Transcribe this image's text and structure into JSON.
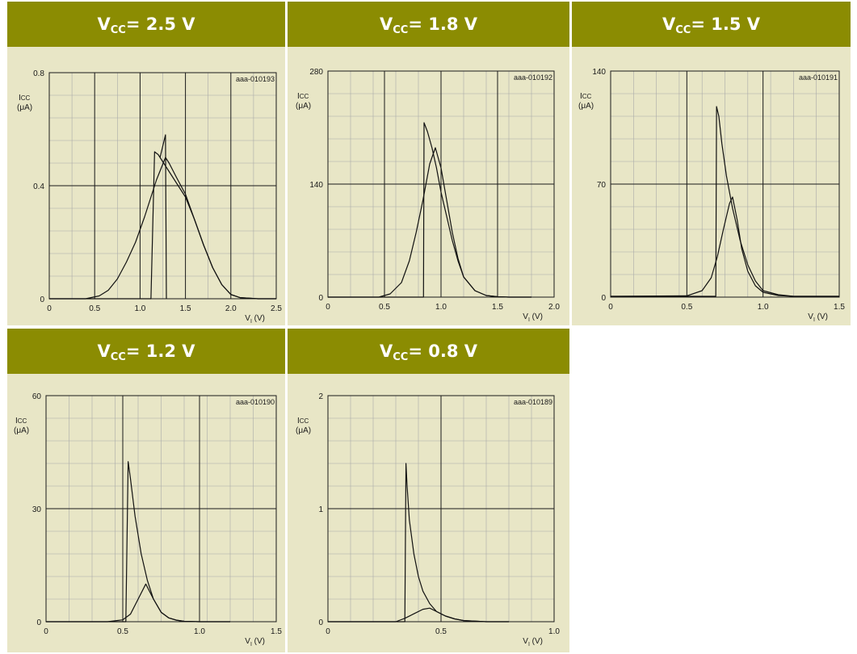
{
  "colors": {
    "header_bg": "#8b8c02",
    "panel_bg": "#e8e6c6",
    "grid_minor": "#a9a9a9",
    "grid_major": "#1a1a1a",
    "curve": "#111111"
  },
  "chart_data": [
    {
      "type": "line",
      "title_var": "V",
      "title_sub": "CC",
      "title_rest": " = 2.5 V",
      "figure_id": "aaa-010193",
      "ylabel_var": "I",
      "ylabel_sub": "CC",
      "ylabel_unit": "(μA)",
      "xlabel_var": "V",
      "xlabel_sub": "I",
      "xlabel_unit": " (V)",
      "xlim": [
        0,
        2.5
      ],
      "ylim": [
        0,
        0.8
      ],
      "xticks": [
        0,
        0.5,
        1.0,
        1.5,
        2.0,
        2.5
      ],
      "xtick_labels": [
        "0",
        "0.5",
        "1.0",
        "1.5",
        "2.0",
        "2.5"
      ],
      "yticks": [
        0,
        0.4,
        0.8
      ],
      "ytick_labels": [
        "0",
        "0.4",
        "0.8"
      ],
      "series": [
        {
          "x": [
            0,
            0.4,
            0.55,
            0.65,
            0.75,
            0.85,
            0.95,
            1.05,
            1.12,
            1.18,
            1.23,
            1.28,
            1.32,
            1.4,
            1.5,
            1.6,
            1.7,
            1.8,
            1.9,
            2.0,
            2.1,
            2.3,
            2.5
          ],
          "y": [
            0,
            0,
            0.01,
            0.03,
            0.07,
            0.13,
            0.2,
            0.29,
            0.36,
            0.42,
            0.46,
            0.5,
            0.48,
            0.43,
            0.37,
            0.28,
            0.19,
            0.11,
            0.05,
            0.015,
            0.004,
            0,
            0
          ]
        },
        {
          "x": [
            0,
            1.12,
            1.16,
            1.2,
            1.26,
            1.32,
            1.4,
            1.5,
            1.6,
            1.7,
            1.8,
            1.9,
            2.0,
            2.1,
            2.3,
            2.5
          ],
          "y": [
            0,
            0,
            0.52,
            0.51,
            0.48,
            0.45,
            0.41,
            0.36,
            0.28,
            0.19,
            0.11,
            0.05,
            0.015,
            0.004,
            0,
            0
          ]
        },
        {
          "x": [
            1.22,
            1.28,
            1.29
          ],
          "y": [
            0.5,
            0.58,
            0.0
          ]
        }
      ]
    },
    {
      "type": "line",
      "title_var": "V",
      "title_sub": "CC",
      "title_rest": " = 1.8 V",
      "figure_id": "aaa-010192",
      "ylabel_var": "I",
      "ylabel_sub": "CC",
      "ylabel_unit": "(μA)",
      "xlabel_var": "V",
      "xlabel_sub": "I",
      "xlabel_unit": " (V)",
      "xlim": [
        0,
        2.0
      ],
      "ylim": [
        0,
        280
      ],
      "xticks": [
        0,
        0.5,
        1.0,
        1.5,
        2.0
      ],
      "xtick_labels": [
        "0",
        "0.5",
        "1.0",
        "1.5",
        "2.0"
      ],
      "yticks": [
        0,
        140,
        280
      ],
      "ytick_labels": [
        "0",
        "140",
        "280"
      ],
      "series": [
        {
          "x": [
            0,
            0.45,
            0.55,
            0.65,
            0.72,
            0.78,
            0.84,
            0.9,
            0.95,
            1.0,
            1.05,
            1.1,
            1.15,
            1.2,
            1.3,
            1.4,
            1.5,
            1.6,
            1.8
          ],
          "y": [
            0,
            0,
            4,
            18,
            45,
            80,
            120,
            165,
            185,
            160,
            120,
            80,
            48,
            25,
            8,
            2,
            0.5,
            0,
            0
          ]
        },
        {
          "x": [
            0,
            0.845,
            0.85,
            0.88,
            0.92,
            0.96,
            1.0,
            1.05,
            1.1,
            1.15,
            1.2,
            1.3,
            1.4,
            1.5,
            1.6,
            1.8
          ],
          "y": [
            0,
            0,
            216,
            205,
            185,
            160,
            130,
            100,
            70,
            45,
            25,
            8,
            2,
            0.5,
            0,
            0
          ]
        }
      ]
    },
    {
      "type": "line",
      "title_var": "V",
      "title_sub": "CC",
      "title_rest": " = 1.5 V",
      "figure_id": "aaa-010191",
      "ylabel_var": "I",
      "ylabel_sub": "CC",
      "ylabel_unit": "(μA)",
      "xlabel_var": "V",
      "xlabel_sub": "I",
      "xlabel_unit": " (V)",
      "xlim": [
        0,
        1.5
      ],
      "ylim": [
        0,
        140
      ],
      "xticks": [
        0,
        0.5,
        1.0,
        1.5
      ],
      "xtick_labels": [
        "0",
        "0.5",
        "1.0",
        "1.5"
      ],
      "yticks": [
        0,
        70,
        140
      ],
      "ytick_labels": [
        "0",
        "70",
        "140"
      ],
      "series": [
        {
          "x": [
            0,
            0.5,
            0.6,
            0.66,
            0.7,
            0.74,
            0.78,
            0.8,
            0.83,
            0.86,
            0.9,
            0.95,
            1.0,
            1.1,
            1.2,
            1.5
          ],
          "y": [
            0.5,
            0.8,
            4,
            12,
            25,
            42,
            58,
            62,
            48,
            30,
            16,
            7,
            3,
            1,
            0.5,
            0.5
          ]
        },
        {
          "x": [
            0,
            0.69,
            0.695,
            0.71,
            0.73,
            0.76,
            0.8,
            0.85,
            0.9,
            0.95,
            1.0,
            1.1,
            1.2,
            1.5
          ],
          "y": [
            0.5,
            0.5,
            118,
            112,
            95,
            75,
            55,
            35,
            20,
            10,
            4,
            1.5,
            0.5,
            0.5
          ]
        }
      ]
    },
    {
      "type": "line",
      "title_var": "V",
      "title_sub": "CC",
      "title_rest": " = 1.2 V",
      "figure_id": "aaa-010190",
      "ylabel_var": "I",
      "ylabel_sub": "CC",
      "ylabel_unit": "(μA)",
      "xlabel_var": "V",
      "xlabel_sub": "I",
      "xlabel_unit": " (V)",
      "xlim": [
        0,
        1.5
      ],
      "ylim": [
        0,
        60
      ],
      "xticks": [
        0,
        0.5,
        1.0,
        1.5
      ],
      "xtick_labels": [
        "0",
        "0.5",
        "1.0",
        "1.5"
      ],
      "yticks": [
        0,
        30,
        60
      ],
      "ytick_labels": [
        "0",
        "30",
        "60"
      ],
      "series": [
        {
          "x": [
            0,
            0.4,
            0.5,
            0.55,
            0.6,
            0.65,
            0.7,
            0.75,
            0.8,
            0.85,
            0.9,
            1.0,
            1.2
          ],
          "y": [
            0,
            0,
            0.5,
            2,
            6,
            10,
            6,
            2.5,
            1,
            0.4,
            0.1,
            0,
            0
          ]
        },
        {
          "x": [
            0,
            0.52,
            0.535,
            0.55,
            0.58,
            0.62,
            0.66,
            0.7,
            0.75,
            0.8,
            0.85,
            0.9,
            1.0,
            1.2
          ],
          "y": [
            0,
            0,
            42.5,
            38,
            28,
            18,
            11,
            6,
            2.5,
            1,
            0.4,
            0.1,
            0,
            0
          ]
        }
      ]
    },
    {
      "type": "line",
      "title_var": "V",
      "title_sub": "CC",
      "title_rest": " = 0.8 V",
      "figure_id": "aaa-010189",
      "ylabel_var": "I",
      "ylabel_sub": "CC",
      "ylabel_unit": "(μA)",
      "xlabel_var": "V",
      "xlabel_sub": "I",
      "xlabel_unit": " (V)",
      "xlim": [
        0,
        1.0
      ],
      "ylim": [
        0,
        2
      ],
      "xticks": [
        0,
        0.5,
        1.0
      ],
      "xtick_labels": [
        "0",
        "0.5",
        "1.0"
      ],
      "yticks": [
        0,
        1,
        2
      ],
      "ytick_labels": [
        "0",
        "1",
        "2"
      ],
      "series": [
        {
          "x": [
            0,
            0.3,
            0.34,
            0.38,
            0.42,
            0.45,
            0.48,
            0.52,
            0.56,
            0.6,
            0.7,
            0.8
          ],
          "y": [
            0,
            0,
            0.03,
            0.07,
            0.11,
            0.12,
            0.09,
            0.05,
            0.025,
            0.01,
            0,
            0
          ]
        },
        {
          "x": [
            0,
            0.34,
            0.345,
            0.35,
            0.36,
            0.38,
            0.4,
            0.42,
            0.45,
            0.48,
            0.52,
            0.56,
            0.6,
            0.7,
            0.8
          ],
          "y": [
            0,
            0,
            1.4,
            1.2,
            0.9,
            0.6,
            0.4,
            0.27,
            0.16,
            0.09,
            0.05,
            0.025,
            0.01,
            0,
            0
          ]
        }
      ]
    }
  ]
}
